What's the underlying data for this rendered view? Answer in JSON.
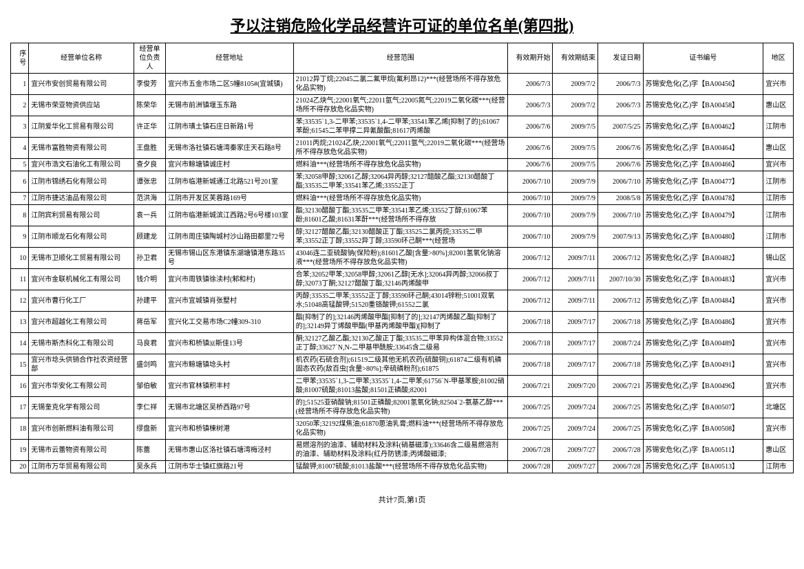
{
  "title": "予以注销危险化学品经营许可证的单位名单(第四批)",
  "footer": "共计7页,第1页",
  "headers": {
    "seq": "序号",
    "name": "经营单位名称",
    "person": "经营单位负责人",
    "addr": "经营地址",
    "scope": "经营范围",
    "start": "有效期开始",
    "end": "有效期结束",
    "issue": "发证日期",
    "cert": "证书编号",
    "region": "地区"
  },
  "rows": [
    {
      "seq": "1",
      "name": "宜兴市安创贸易有限公司",
      "person": "李俊芳",
      "addr": "宜兴市五金市场二区5幢8105#(宜城镇)",
      "scope": "21012异丁烷;22045二氯二氟甲烷(氟利昂12)***(经营场所不得存放危化品实物)",
      "start": "2006/7/3",
      "end": "2009/7/2",
      "issue": "2006/7/3",
      "cert": "苏锡安危化(乙)字【BA00456】",
      "region": "宜兴市"
    },
    {
      "seq": "2",
      "name": "无锡市荣亚物资供应站",
      "person": "陈荣华",
      "addr": "无锡市前洲镇堰玉东路",
      "scope": "21024乙炔气;22001氧气;22011氩气;22005氮气;22019二氧化碳***(经营场所不得存放危化品实物)",
      "start": "2006/7/3",
      "end": "2009/7/2",
      "issue": "2006/7/3",
      "cert": "苏锡安危化(乙)字【BA00458】",
      "region": "惠山区"
    },
    {
      "seq": "3",
      "name": "江阴爱华化工贸易有限公司",
      "person": "许正华",
      "addr": "江阴市璜土镇石庄日新路1号",
      "scope": "苯;33535`1,3-二甲苯;33535`1,4-二甲苯;33541苯乙烯[抑制了的];61067苯酚;61545二苯甲撑二异氰酸酯;81617丙烯酸",
      "start": "2006/7/6",
      "end": "2009/7/5",
      "issue": "2007/5/25",
      "cert": "苏锡安危化(乙)字【BA00462】",
      "region": "江阴市"
    },
    {
      "seq": "4",
      "name": "无锡市富胜物资有限公司",
      "person": "王盘胜",
      "addr": "无锡市洛社镇石塘湾秦家庄天石路8号",
      "scope": "21011丙烷;21024乙炔;22001氧气;22011氩气;22019二氧化碳***(经营场所不得存放危化品实物)",
      "start": "2006/7/6",
      "end": "2009/7/5",
      "issue": "2006/7/6",
      "cert": "苏锡安危化(乙)字【BA00464】",
      "region": "惠山区"
    },
    {
      "seq": "5",
      "name": "宜兴市浩文石油化工有限公司",
      "person": "查夕良",
      "addr": "宜兴市鲸塘镇诚庄村",
      "scope": "燃料油***(经营场所不得存放危化品实物)",
      "start": "2006/7/6",
      "end": "2009/7/5",
      "issue": "2006/7/6",
      "cert": "苏锡安危化(乙)字【BA00466】",
      "region": "宜兴市"
    },
    {
      "seq": "6",
      "name": "江阴市锦绣石化有限公司",
      "person": "谭张忠",
      "addr": "江阴市临港新城通江北路521号201室",
      "scope": "苯;32058甲醇;32061乙醇;32064异丙醇;32127醋酸乙酯;32130醋酸丁酯;33535二甲苯;33541苯乙烯;33552正丁",
      "start": "2006/7/10",
      "end": "2009/7/9",
      "issue": "2006/7/10",
      "cert": "苏锡安危化(乙)字【BA00477】",
      "region": "江阴市"
    },
    {
      "seq": "7",
      "name": "江阴市捷达油品有限公司",
      "person": "范洪海",
      "addr": "江阴市开发区芙蓉路169号",
      "scope": "燃料油***(经营场所不得存放危化品实物)",
      "start": "2006/7/10",
      "end": "2009/7/9",
      "issue": "2008/5/8",
      "cert": "苏锡安危化(乙)字【BA00478】",
      "region": "江阴市"
    },
    {
      "seq": "8",
      "name": "江阴宾利贸易有限公司",
      "person": "袁一兵",
      "addr": "江阴市临港新城滨江西路2号6号楼103室",
      "scope": "酯;32130醋酸丁酯;33535二甲苯;33541苯乙烯;33552丁醇;61067苯酚;81601乙酸;81631苯酐***(经营场所不得存放",
      "start": "2006/7/10",
      "end": "2009/7/9",
      "issue": "2006/7/10",
      "cert": "苏锡安危化(乙)字【BA00479】",
      "region": "江阴市"
    },
    {
      "seq": "9",
      "name": "江阴市顺龙石化有限公司",
      "person": "顾建龙",
      "addr": "江阴市周庄镇陶城村沙山路田都里72号",
      "scope": "醇;32127醋酸乙酯;32130醋酸正丁酯;33525二氯丙烷;33535二甲苯;33552正丁醇;33552异丁醇;33590环己酮***(经营场",
      "start": "2006/7/10",
      "end": "2009/7/9",
      "issue": "2007/9/13",
      "cert": "苏锡安危化(乙)字【BA00480】",
      "region": "江阴市"
    },
    {
      "seq": "10",
      "name": "无锡市卫顺化工贸易有限公司",
      "person": "孙卫君",
      "addr": "无锡市锡山区东港镇东湖塘镇港东路35号",
      "scope": "43046连二亚硫酸钠(保险粉);81601乙酸[含量>80%];82001氢氧化钠溶液***(经营场所不得存放危化品实物)",
      "start": "2006/7/12",
      "end": "2009/7/11",
      "issue": "2006/7/12",
      "cert": "苏锡安危化(乙)字【BA00482】",
      "region": "锡山区"
    },
    {
      "seq": "11",
      "name": "宜兴市金联机械化工有限公司",
      "person": "钱介明",
      "addr": "宜兴市周铁镇徐渎村(邾和村)",
      "scope": "合苯;32052甲苯;32058甲醇;32061乙醇[无水];32064异丙醇;32066叔丁醇;32073丁酮;32127醋酸丁酯;32146丙烯酸甲",
      "start": "2006/7/12",
      "end": "2009/7/11",
      "issue": "2007/10/30",
      "cert": "苏锡安危化(乙)字【BA00483】",
      "region": "宜兴市"
    },
    {
      "seq": "12",
      "name": "宜兴市曹行化工厂",
      "person": "孙建平",
      "addr": "宜兴市宜城镇肖张墅村",
      "scope": "丙醇;33535二甲苯;33552正丁醇;33590环己酮;43014锌粉;51001双氧水;51048高锰酸钾;51520重铬酸钾;61552二氯",
      "start": "2006/7/12",
      "end": "2009/7/11",
      "issue": "2006/7/12",
      "cert": "苏锡安危化(乙)字【BA00484】",
      "region": "宜兴市"
    },
    {
      "seq": "13",
      "name": "宜兴市超越化工有限公司",
      "person": "蒋岳军",
      "addr": "宜兴化工交易市场C2幢309-310",
      "scope": "酯[抑制了的];32146丙烯酸甲酯[抑制了的];32147丙烯酸乙酯[抑制了的];32149异丁烯酸甲酯(甲基丙烯酸甲酯)[抑制了",
      "start": "2006/7/18",
      "end": "2009/7/17",
      "issue": "2006/7/18",
      "cert": "苏锡安危化(乙)字【BA00486】",
      "region": "宜兴市"
    },
    {
      "seq": "14",
      "name": "无锡市斯杰科化工有限公司",
      "person": "马良君",
      "addr": "宜兴市和桥镇🇲斯佳13号",
      "scope": "酮;32127乙酸乙酯;32130乙酸正丁酯;33535二甲苯异构体混合物;33552正丁醇;33627`N,N-二甲基甲酰胺;33645含二级易",
      "start": "2006/7/18",
      "end": "2009/7/17",
      "issue": "2008/7/24",
      "cert": "苏锡安危化(乙)字【BA00489】",
      "region": "宜兴市"
    },
    {
      "seq": "15",
      "name": "宜兴市埝头供销合作社农资经营部",
      "person": "盛剑鸣",
      "addr": "宜兴市鲸塘镇埝头村",
      "scope": "机农药(石硫合剂);61519二级其他无机农药(硫酸铜);61874二级有机磷固态农药(敌百虫[含量>80%];辛硫磷粉剂);61875",
      "start": "2006/7/18",
      "end": "2009/7/17",
      "issue": "2006/7/18",
      "cert": "苏锡安危化(乙)字【BA00491】",
      "region": "宜兴市"
    },
    {
      "seq": "16",
      "name": "宜兴市华安化工有限公司",
      "person": "邹伯敏",
      "addr": "宜兴市官林镇积丰村",
      "scope": "二甲苯;33535`1,3-二甲苯;33535`1,4-二甲苯;61756`N-甲基苯胺;81002硝酸;81007硫酸;81013盐酸;81501正磷酸;82001",
      "start": "2006/7/21",
      "end": "2009/7/20",
      "issue": "2006/7/21",
      "cert": "苏锡安危化(乙)字【BA00496】",
      "region": "宜兴市"
    },
    {
      "seq": "17",
      "name": "无锡奎克化学有限公司",
      "person": "李仁祥",
      "addr": "无锡市北塘区吴桥西路97号",
      "scope": "的];51525亚硝酸钠;81501正磷酸;82001氢氧化钠;82504`2-氨基乙醇***(经营场所不得存放危化品实物)",
      "start": "2006/7/25",
      "end": "2009/7/24",
      "issue": "2006/7/25",
      "cert": "苏锡安危化(乙)字【BA00507】",
      "region": "北塘区"
    },
    {
      "seq": "18",
      "name": "宜兴市创新燃料油有限公司",
      "person": "缪盘新",
      "addr": "宜兴市和桥镇楝树港",
      "scope": "32050苯;32192煤焦油;61870葸油乳膏;燃料油***(经营场所不得存放危化品实物)",
      "start": "2006/7/25",
      "end": "2009/7/24",
      "issue": "2006/7/25",
      "cert": "苏锡安危化(乙)字【BA00508】",
      "region": "宜兴市"
    },
    {
      "seq": "19",
      "name": "无锡市云蕾物资有限公司",
      "person": "陈蕾",
      "addr": "无锡市惠山区洛社镇石塘湾梅泾村",
      "scope": "易燃溶剂的油漆、辅助材料及涂料(硝基磁漆);33646含二级易燃溶剂的油漆、辅助材料及涂料(红丹防锈漆;丙烯酸磁漆;",
      "start": "2006/7/28",
      "end": "2009/7/27",
      "issue": "2006/7/28",
      "cert": "苏锡安危化(乙)字【BA00511】",
      "region": "惠山区"
    },
    {
      "seq": "20",
      "name": "江阴市万华贸易有限公司",
      "person": "吴永兵",
      "addr": "江阴市华士镇红旗路21号",
      "scope": "锰酸钾;81007硫酸;81013盐酸***(经营场所不得存放危化品实物)",
      "start": "2006/7/28",
      "end": "2009/7/27",
      "issue": "2006/7/28",
      "cert": "苏锡安危化(乙)字【BA00513】",
      "region": "江阴市"
    }
  ]
}
